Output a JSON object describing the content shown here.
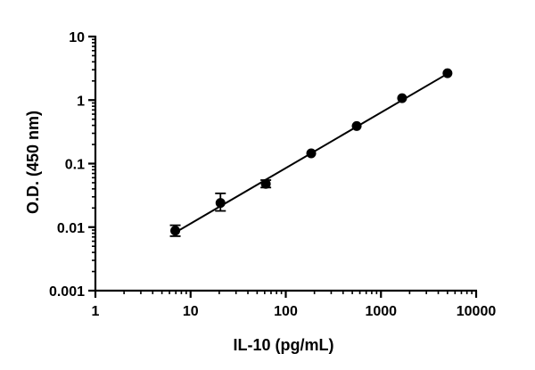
{
  "chart_data": {
    "type": "scatter",
    "title": "",
    "xlabel": "IL-10 (pg/mL)",
    "ylabel": "O.D. (450 nm)",
    "x_scale": "log",
    "y_scale": "log",
    "xlim": [
      1,
      10000
    ],
    "ylim": [
      0.001,
      10
    ],
    "x_ticks": [
      1,
      10,
      100,
      1000,
      10000
    ],
    "x_tick_labels": [
      "1",
      "10",
      "100",
      "1000",
      "10000"
    ],
    "y_ticks": [
      0.001,
      0.01,
      0.1,
      1,
      10
    ],
    "y_tick_labels": [
      "0.001",
      "0.01",
      "0.1",
      "1",
      "10"
    ],
    "grid": false,
    "legend": "none",
    "marker_color": "#000000",
    "series": [
      {
        "x": [
          6.9,
          20.6,
          61.7,
          185,
          556,
          1667,
          5000
        ],
        "y": [
          0.0088,
          0.024,
          0.048,
          0.145,
          0.39,
          1.07,
          2.65
        ],
        "y_err_low": [
          0.0072,
          0.018,
          0.042,
          0.145,
          0.39,
          1.07,
          2.65
        ],
        "y_err_high": [
          0.0107,
          0.034,
          0.055,
          0.145,
          0.39,
          1.07,
          2.65
        ]
      }
    ],
    "fit_line": {
      "x": [
        6.5,
        5000
      ],
      "y": [
        0.0078,
        2.6
      ]
    }
  }
}
